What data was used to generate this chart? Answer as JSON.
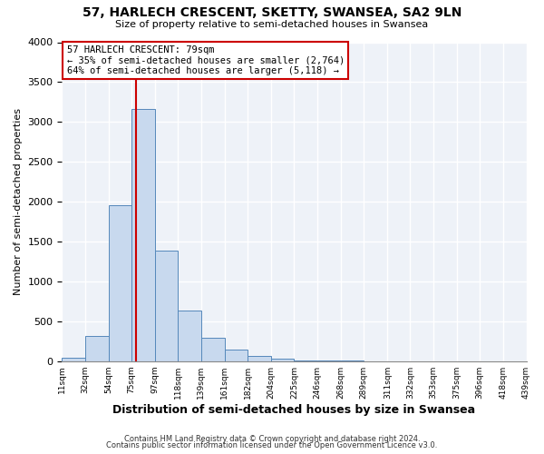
{
  "title": "57, HARLECH CRESCENT, SKETTY, SWANSEA, SA2 9LN",
  "subtitle": "Size of property relative to semi-detached houses in Swansea",
  "xlabel": "Distribution of semi-detached houses by size in Swansea",
  "ylabel": "Number of semi-detached properties",
  "bin_edges": [
    11,
    32,
    54,
    75,
    97,
    118,
    139,
    161,
    182,
    204,
    225,
    246,
    268,
    289,
    311,
    332,
    353,
    375,
    396,
    418,
    439
  ],
  "bar_heights": [
    45,
    310,
    1960,
    3160,
    1390,
    640,
    290,
    140,
    65,
    30,
    10,
    5,
    3,
    2,
    2,
    1,
    1,
    1,
    1,
    1
  ],
  "bar_color": "#c8d9ee",
  "bar_edge_color": "#5588bb",
  "property_value": 79,
  "vline_color": "#cc0000",
  "annotation_title": "57 HARLECH CRESCENT: 79sqm",
  "annotation_line1": "← 35% of semi-detached houses are smaller (2,764)",
  "annotation_line2": "64% of semi-detached houses are larger (5,118) →",
  "annotation_box_facecolor": "#ffffff",
  "annotation_box_edgecolor": "#cc0000",
  "ylim": [
    0,
    4000
  ],
  "yticks": [
    0,
    500,
    1000,
    1500,
    2000,
    2500,
    3000,
    3500,
    4000
  ],
  "footer1": "Contains HM Land Registry data © Crown copyright and database right 2024.",
  "footer2": "Contains public sector information licensed under the Open Government Licence v3.0.",
  "bg_color": "#ffffff",
  "plot_bg_color": "#eef2f8",
  "grid_color": "#ffffff"
}
